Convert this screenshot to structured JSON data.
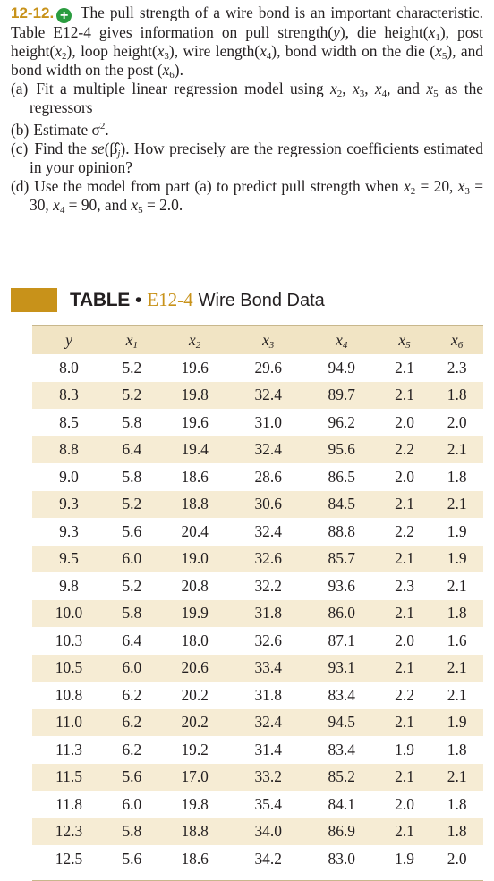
{
  "problem": {
    "number": "12-12.",
    "intro_pre": " The pull strength of a wire bond is an important characteristic. Table E12-4 gives information on pull strength(",
    "intro_post": ", and bond width on the post (",
    "intro_end": ").",
    "parts": [
      {
        "label": "(a)",
        "text": "Fit a multiple linear regression model using x2, x3, x4, and x5 as the regressors"
      },
      {
        "label": "(b)",
        "text": "Estimate σ²."
      },
      {
        "label": "(c)",
        "text": "Find the se(β̂j). How precisely are the regression coefficients estimated in your opinion?"
      },
      {
        "label": "(d)",
        "text": "Use the model from part (a) to predict pull strength when x2 = 20, x3 = 30, x4 = 90, and x5 = 2.0."
      }
    ]
  },
  "table": {
    "word": "TABLE",
    "bullet": "•",
    "number": "E12-4",
    "caption": "Wire Bond Data",
    "headers": [
      "y",
      "x1",
      "x2",
      "x3",
      "x4",
      "x5",
      "x6"
    ],
    "rows": [
      [
        "8.0",
        "5.2",
        "19.6",
        "29.6",
        "94.9",
        "2.1",
        "2.3"
      ],
      [
        "8.3",
        "5.2",
        "19.8",
        "32.4",
        "89.7",
        "2.1",
        "1.8"
      ],
      [
        "8.5",
        "5.8",
        "19.6",
        "31.0",
        "96.2",
        "2.0",
        "2.0"
      ],
      [
        "8.8",
        "6.4",
        "19.4",
        "32.4",
        "95.6",
        "2.2",
        "2.1"
      ],
      [
        "9.0",
        "5.8",
        "18.6",
        "28.6",
        "86.5",
        "2.0",
        "1.8"
      ],
      [
        "9.3",
        "5.2",
        "18.8",
        "30.6",
        "84.5",
        "2.1",
        "2.1"
      ],
      [
        "9.3",
        "5.6",
        "20.4",
        "32.4",
        "88.8",
        "2.2",
        "1.9"
      ],
      [
        "9.5",
        "6.0",
        "19.0",
        "32.6",
        "85.7",
        "2.1",
        "1.9"
      ],
      [
        "9.8",
        "5.2",
        "20.8",
        "32.2",
        "93.6",
        "2.3",
        "2.1"
      ],
      [
        "10.0",
        "5.8",
        "19.9",
        "31.8",
        "86.0",
        "2.1",
        "1.8"
      ],
      [
        "10.3",
        "6.4",
        "18.0",
        "32.6",
        "87.1",
        "2.0",
        "1.6"
      ],
      [
        "10.5",
        "6.0",
        "20.6",
        "33.4",
        "93.1",
        "2.1",
        "2.1"
      ],
      [
        "10.8",
        "6.2",
        "20.2",
        "31.8",
        "83.4",
        "2.2",
        "2.1"
      ],
      [
        "11.0",
        "6.2",
        "20.2",
        "32.4",
        "94.5",
        "2.1",
        "1.9"
      ],
      [
        "11.3",
        "6.2",
        "19.2",
        "31.4",
        "83.4",
        "1.9",
        "1.8"
      ],
      [
        "11.5",
        "5.6",
        "17.0",
        "33.2",
        "85.2",
        "2.1",
        "2.1"
      ],
      [
        "11.8",
        "6.0",
        "19.8",
        "35.4",
        "84.1",
        "2.0",
        "1.8"
      ],
      [
        "12.3",
        "5.8",
        "18.8",
        "34.0",
        "86.9",
        "2.1",
        "1.8"
      ],
      [
        "12.5",
        "5.6",
        "18.6",
        "34.2",
        "83.0",
        "1.9",
        "2.0"
      ]
    ]
  },
  "colors": {
    "accent": "#c8921a",
    "plus_icon": "#2a9c3f",
    "header_fill": "#f1e4c4",
    "stripe_fill": "#f6ecd4"
  }
}
